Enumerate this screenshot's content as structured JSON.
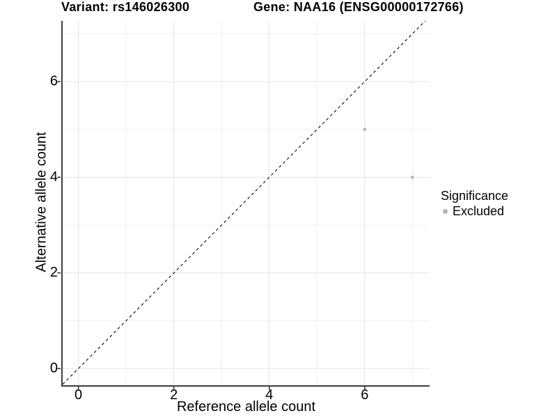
{
  "chart_data": {
    "type": "scatter",
    "title_left": "Variant: rs146026300",
    "title_right": "Gene: NAA16 (ENSG00000172766)",
    "xlabel": "Reference allele count",
    "ylabel": "Alternative allele count",
    "xlim": [
      -0.33,
      7.36
    ],
    "ylim": [
      -0.35,
      7.27
    ],
    "x_major_ticks": [
      0,
      2,
      4,
      6
    ],
    "y_major_ticks": [
      0,
      2,
      4,
      6
    ],
    "x_minor_ticks": [
      1,
      3,
      5,
      7
    ],
    "y_minor_ticks": [
      1,
      3,
      5,
      7
    ],
    "grid": true,
    "legend_position": "right",
    "identity_line": {
      "slope": 1,
      "intercept": 0,
      "style": "dashed",
      "color": "#000000"
    },
    "series": [
      {
        "name": "Excluded",
        "color": "#b4b4b4",
        "points": [
          {
            "x": 6,
            "y": 5
          },
          {
            "x": 7,
            "y": 4
          }
        ]
      }
    ],
    "legend": {
      "title": "Significance",
      "items": [
        {
          "label": "Excluded",
          "color": "#b4b4b4"
        }
      ]
    },
    "colors": {
      "text": "#000000",
      "axis_line": "#3d3d3d",
      "tick_mark": "#333333",
      "grid_major": "#e4e4e4",
      "grid_minor": "#f0f0f0",
      "point": "#b4b4b4",
      "background": "#ffffff"
    }
  }
}
